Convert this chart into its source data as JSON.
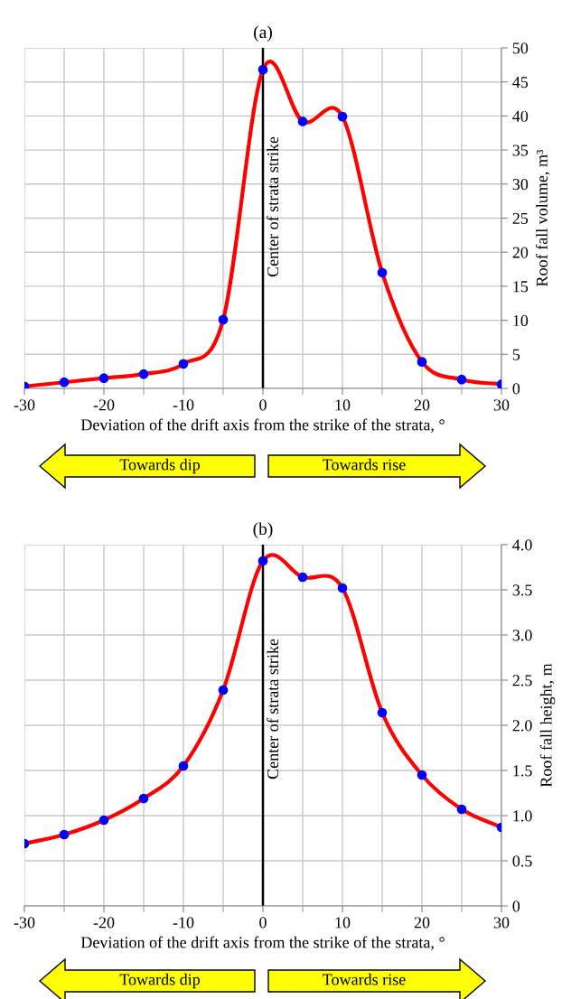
{
  "chart_data": [
    {
      "type": "line",
      "title": "(a)",
      "xlabel": "Deviation of the drift axis from the strike of the strata, °",
      "ylabel": "Roof fall volume, m³",
      "x": [
        -30,
        -25,
        -20,
        -15,
        -10,
        -5,
        0,
        5,
        10,
        15,
        20,
        25,
        30
      ],
      "series": [
        {
          "color": "#ff0000",
          "marker": "none",
          "values": [
            0.3,
            0.9,
            1.5,
            2.1,
            3.6,
            10.1,
            46.8,
            39.2,
            39.9,
            17.0,
            3.9,
            1.3,
            0.6
          ]
        },
        {
          "type": "scatter",
          "color": "#0000ff",
          "marker": "circle",
          "values": [
            0.3,
            0.9,
            1.5,
            2.1,
            3.6,
            10.1,
            46.8,
            39.2,
            39.9,
            17.0,
            3.9,
            1.3,
            0.6
          ]
        }
      ],
      "xlim": [
        -30,
        30
      ],
      "xticks": [
        -30,
        -20,
        -10,
        0,
        10,
        20,
        30
      ],
      "ylim": [
        0,
        50
      ],
      "yticks": [
        0,
        5,
        10,
        15,
        20,
        25,
        30,
        35,
        40,
        45,
        50
      ],
      "grid": true,
      "ref_lines": [
        {
          "axis": "x",
          "value": 0,
          "label": "Center of strata strike",
          "color": "#000000"
        }
      ],
      "annotations": [
        "Towards dip",
        "Towards rise"
      ]
    },
    {
      "type": "line",
      "title": "(b)",
      "xlabel": "Deviation of the drift axis from the strike of the strata, °",
      "ylabel": "Roof fall height, m",
      "x": [
        -30,
        -25,
        -20,
        -15,
        -10,
        -5,
        0,
        5,
        10,
        15,
        20,
        25,
        30
      ],
      "series": [
        {
          "color": "#ff0000",
          "marker": "none",
          "values": [
            0.69,
            0.79,
            0.95,
            1.19,
            1.55,
            2.39,
            3.82,
            3.64,
            3.52,
            2.14,
            1.45,
            1.07,
            0.87
          ]
        },
        {
          "type": "scatter",
          "color": "#0000ff",
          "marker": "circle",
          "values": [
            0.69,
            0.79,
            0.95,
            1.19,
            1.55,
            2.39,
            3.82,
            3.64,
            3.52,
            2.14,
            1.45,
            1.07,
            0.87
          ]
        }
      ],
      "xlim": [
        -30,
        30
      ],
      "xticks": [
        -30,
        -20,
        -10,
        0,
        10,
        20,
        30
      ],
      "ylim": [
        0,
        4.0
      ],
      "yticks": [
        0,
        {
          "value": 0.5,
          "label": "0.5"
        },
        {
          "value": 1.0,
          "label": "1.0"
        },
        {
          "value": 1.5,
          "label": "1.5"
        },
        {
          "value": 2.0,
          "label": "2.0"
        },
        {
          "value": 2.5,
          "label": "2.5"
        },
        {
          "value": 3.0,
          "label": "3.0"
        },
        {
          "value": 3.5,
          "label": "3.5"
        },
        {
          "value": 4.0,
          "label": "4.0"
        }
      ],
      "grid": true,
      "ref_lines": [
        {
          "axis": "x",
          "value": 0,
          "label": "Center of strata strike",
          "color": "#000000"
        }
      ],
      "annotations": [
        "Towards dip",
        "Towards rise"
      ]
    }
  ]
}
